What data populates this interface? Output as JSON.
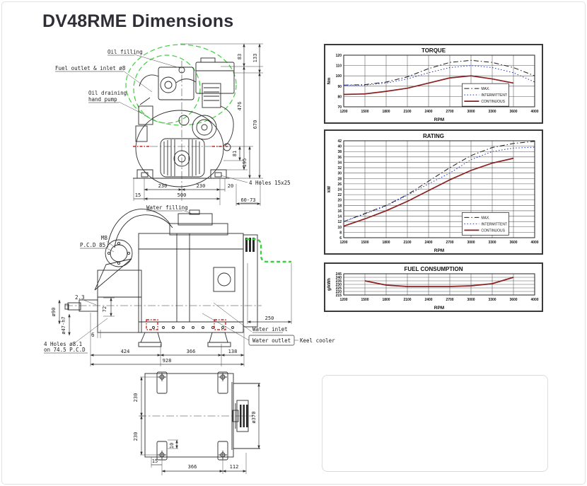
{
  "page": {
    "title": "DV48RME Dimensions"
  },
  "front": {
    "labels": {
      "oil_filling": "Oil filling",
      "fuel_outlet": "Fuel outlet & inlet ø8",
      "oil_draining_line1": "Oil draining",
      "oil_draining_line2": "hand pump",
      "holes": "4 Holes 15x25"
    },
    "dims": {
      "h83": "83",
      "h133": "133",
      "h476": "476",
      "h670": "670",
      "h81": "81",
      "h195": "195",
      "w230a": "230",
      "w230b": "230",
      "w20": "20",
      "w500": "500",
      "w15": "15",
      "w6073": "60-73"
    }
  },
  "side": {
    "labels": {
      "water_filling": "Water filling",
      "m8": "M8",
      "pcd": "P.C.D 85",
      "shim": "2.3",
      "k72": "72",
      "dia90": "ø90",
      "dia47": "ø47-h7",
      "k6": "6",
      "holes_line1": "4 Holes ø8.1",
      "holes_line2": "on 74.5 P.C.D",
      "water_inlet": "Water inlet",
      "water_outlet": "Water outlet",
      "keel_cooler": "Keel cooler"
    },
    "dims": {
      "w424": "424",
      "w366": "366",
      "w138": "138",
      "w928": "928",
      "w250": "250"
    }
  },
  "bottom": {
    "dims": {
      "h230a": "230",
      "h230b": "230",
      "dia370": "ø370",
      "w15": "15",
      "w10": "10",
      "w366": "366",
      "w112": "112"
    }
  },
  "colors": {
    "max": "#1a1a1a",
    "intermittent": "#2233bb",
    "continuous": "#8b2020",
    "keel_pipe": "#3ecf3e",
    "highlight_red": "#cf2222"
  },
  "chart_data": [
    {
      "type": "line",
      "title": "TORQUE",
      "xlabel": "RPM",
      "ylabel": "Nm",
      "x_ticks": [
        1200,
        1500,
        1800,
        2100,
        2400,
        2700,
        3000,
        3300,
        3600,
        4000
      ],
      "ylim": [
        70,
        120
      ],
      "y_step": 10,
      "grid": true,
      "legend": {
        "x": 0.62,
        "y": 0.55
      },
      "series": [
        {
          "name": "MAX.",
          "style": "dashdot",
          "color": "#1a1a1a",
          "values": [
            91,
            91.5,
            94,
            99,
            107,
            113,
            115,
            113,
            108,
            100
          ]
        },
        {
          "name": "INTERMITTENT",
          "style": "dotted",
          "color": "#2233bb",
          "values": [
            91,
            91,
            93,
            97,
            103,
            108,
            110,
            108,
            103,
            94
          ]
        },
        {
          "name": "CONTINUOUS",
          "style": "solid",
          "color": "#8b2020",
          "values": [
            82,
            82.5,
            85,
            88,
            93,
            98,
            100,
            97,
            93,
            null
          ]
        }
      ]
    },
    {
      "type": "line",
      "title": "RATING",
      "xlabel": "RPM",
      "ylabel": "kW",
      "x_ticks": [
        1200,
        1500,
        1800,
        2100,
        2400,
        2700,
        3000,
        3300,
        3600,
        4000
      ],
      "ylim": [
        6,
        42
      ],
      "y_step": 2,
      "grid": true,
      "legend": {
        "x": 0.62,
        "y": 0.74
      },
      "series": [
        {
          "name": "MAX.",
          "style": "dashdot",
          "color": "#1a1a1a",
          "values": [
            12,
            15,
            18,
            22,
            27,
            32,
            36.5,
            39.5,
            41,
            41.8
          ]
        },
        {
          "name": "INTERMITTENT",
          "style": "dotted",
          "color": "#2233bb",
          "values": [
            12,
            14.8,
            17.8,
            21.8,
            26,
            30,
            35,
            38,
            39.3,
            39.6
          ]
        },
        {
          "name": "CONTINUOUS",
          "style": "solid",
          "color": "#8b2020",
          "values": [
            10.3,
            13,
            16,
            19.5,
            23.5,
            27.5,
            31,
            33.7,
            35.5,
            null
          ]
        }
      ]
    },
    {
      "type": "line",
      "title": "FUEL CONSUMPTION",
      "xlabel": "RPM",
      "ylabel": "g/kWh",
      "x_ticks": [
        1200,
        1500,
        1800,
        2100,
        2400,
        2700,
        3000,
        3300,
        3600,
        4000
      ],
      "ylim": [
        215,
        245
      ],
      "y_step": 5,
      "grid": true,
      "legend": null,
      "series": [
        {
          "name": "CONTINUOUS",
          "style": "solid",
          "color": "#8b2020",
          "values": [
            null,
            235,
            229,
            227,
            227,
            227,
            228,
            231,
            240,
            null
          ]
        }
      ]
    }
  ]
}
